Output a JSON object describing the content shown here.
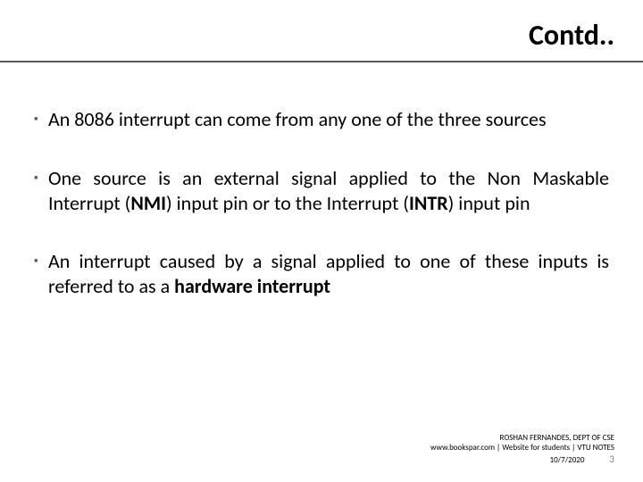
{
  "slide": {
    "title": "Contd..",
    "title_color": "#000000",
    "title_fontsize": 32,
    "underline_color": "#595959",
    "background_color": "#ffffff",
    "body_fontsize": 22,
    "body_color": "#000000",
    "bullet_marker": "▪",
    "bullet_marker_color": "#595959",
    "bullets": [
      {
        "runs": [
          {
            "text": "An 8086 interrupt can come from any one of the three sources",
            "bold": false
          }
        ]
      },
      {
        "runs": [
          {
            "text": "One source is an external signal applied to the Non Maskable Interrupt (",
            "bold": false
          },
          {
            "text": "NMI",
            "bold": true
          },
          {
            "text": ") input pin or to the Interrupt (",
            "bold": false
          },
          {
            "text": "INTR",
            "bold": true
          },
          {
            "text": ") input pin",
            "bold": false
          }
        ]
      },
      {
        "runs": [
          {
            "text": "An interrupt caused by a signal applied to one of these inputs is referred to as a ",
            "bold": false
          },
          {
            "text": "hardware interrupt",
            "bold": true
          }
        ]
      }
    ]
  },
  "footer": {
    "credit": "ROSHAN FERNANDES, DEPT OF CSE",
    "site": "www.bookspar.com | Website for students | VTU NOTES",
    "date": "10/7/2020",
    "page": "3",
    "fontsize": 9,
    "page_color": "#7f7f7f"
  }
}
